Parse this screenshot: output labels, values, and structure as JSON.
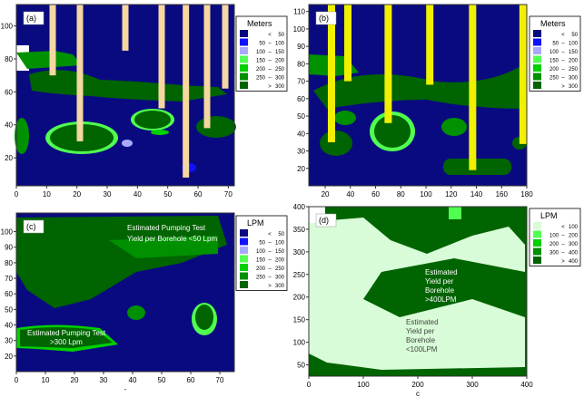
{
  "colors": {
    "navy": "#0a0a80",
    "blue": "#1010ff",
    "lav": "#a8a8ff",
    "lgreen": "#50ff50",
    "green": "#00d000",
    "mgreen": "#009000",
    "dgreen": "#006400",
    "pale": "#d8fcd8",
    "bore": "#f5d7a0",
    "yellow": "#f0f000"
  },
  "panels": [
    {
      "label": "(a)",
      "xlim": [
        0,
        72
      ],
      "ylim": [
        3,
        113
      ],
      "xticks": [
        0,
        10,
        20,
        30,
        40,
        50,
        60,
        70
      ],
      "yticks": [
        20,
        40,
        60,
        80,
        100
      ],
      "legend": {
        "title": "Meters",
        "items": [
          [
            "",
            "<",
            "50"
          ],
          [
            "50",
            "–",
            "100"
          ],
          [
            "100",
            "–",
            "150"
          ],
          [
            "150",
            "–",
            "200"
          ],
          [
            "200",
            "–",
            "250"
          ],
          [
            "250",
            "–",
            "300"
          ],
          [
            "",
            ">",
            "300"
          ]
        ]
      },
      "boreholes": [
        [
          12,
          70
        ],
        [
          21,
          30
        ],
        [
          36,
          85
        ],
        [
          48,
          50
        ],
        [
          56,
          8
        ],
        [
          63,
          38
        ],
        [
          69,
          62
        ]
      ]
    },
    {
      "label": "(b)",
      "xlim": [
        7,
        180
      ],
      "ylim": [
        10,
        114
      ],
      "xticks": [
        20,
        40,
        60,
        80,
        100,
        120,
        140,
        160,
        180
      ],
      "yticks": [
        20,
        30,
        40,
        50,
        60,
        70,
        80,
        90,
        100,
        110
      ],
      "legend": {
        "title": "Meters",
        "items": [
          [
            "",
            "<",
            "50"
          ],
          [
            "50",
            "–",
            "100"
          ],
          [
            "100",
            "–",
            "150"
          ],
          [
            "150",
            "–",
            "200"
          ],
          [
            "200",
            "–",
            "250"
          ],
          [
            "250",
            "–",
            "300"
          ],
          [
            "",
            ">",
            "300"
          ]
        ]
      },
      "boreholes": [
        [
          25,
          35
        ],
        [
          38,
          70
        ],
        [
          70,
          46
        ],
        [
          103,
          68
        ],
        [
          137,
          19
        ],
        [
          177,
          34
        ]
      ]
    },
    {
      "label": "(c)",
      "xlim": [
        0,
        75
      ],
      "ylim": [
        10,
        112
      ],
      "xticks": [
        0,
        10,
        20,
        30,
        40,
        50,
        60,
        70
      ],
      "yticks": [
        20,
        30,
        40,
        50,
        60,
        70,
        80,
        90,
        100
      ],
      "legend": {
        "title": "LPM",
        "items": [
          [
            "",
            "<",
            "50"
          ],
          [
            "50",
            "–",
            "100"
          ],
          [
            "100",
            "–",
            "150"
          ],
          [
            "150",
            "–",
            "200"
          ],
          [
            "200",
            "–",
            "250"
          ],
          [
            "250",
            "–",
            "300"
          ],
          [
            "",
            ">",
            "300"
          ]
        ]
      },
      "annotations": [
        "Estimated Pumping Test",
        "Yield per Borehole   <50 Lpm",
        "Estimated Pumping Test",
        ">300 Lpm"
      ],
      "xlabel": "-"
    },
    {
      "label": "(d)",
      "xlim": [
        0,
        400
      ],
      "ylim": [
        25,
        400
      ],
      "xticks": [
        0,
        100,
        200,
        300,
        400
      ],
      "yticks": [
        50,
        100,
        150,
        200,
        250,
        300,
        350,
        400
      ],
      "legend": {
        "title": "LPM",
        "items": [
          [
            "",
            "<",
            "100"
          ],
          [
            "100",
            "–",
            "200"
          ],
          [
            "200",
            "–",
            "300"
          ],
          [
            "300",
            "–",
            "400"
          ],
          [
            "",
            ">",
            "400"
          ]
        ]
      },
      "annotations": [
        "Estimated",
        "Yield per",
        "Borehole",
        ">400LPM",
        "Estimated",
        "Yield per",
        "Borehole",
        "<100LPM"
      ],
      "xlabel": "c"
    }
  ]
}
